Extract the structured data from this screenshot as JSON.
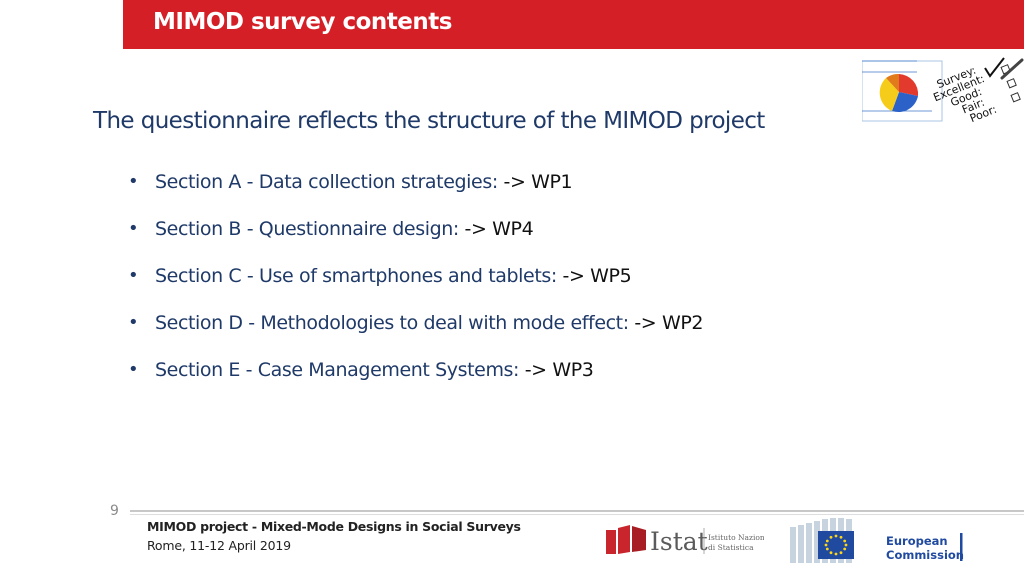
{
  "header": {
    "title": "MIMOD survey contents"
  },
  "survey_image": {
    "icon": "survey-checklist-pie-icon",
    "lines": [
      "Survey:",
      "Excellent:",
      "Good:",
      "Fair:",
      "Poor:"
    ]
  },
  "subtitle": "The questionnaire reflects the structure of the MIMOD project",
  "sections": [
    {
      "label": "Section A - Data collection strategies:",
      "wp": "-> WP1"
    },
    {
      "label": "Section B - Questionnaire design:",
      "wp": "-> WP4"
    },
    {
      "label": "Section C - Use of smartphones and tablets:",
      "wp": "-> WP5"
    },
    {
      "label": "Section D - Methodologies to deal with mode effect:",
      "wp": "-> WP2"
    },
    {
      "label": "Section E - Case Management Systems:",
      "wp": "-> WP3"
    }
  ],
  "footer": {
    "page_number": "9",
    "project": "MIMOD project - Mixed-Mode Designs in Social Surveys",
    "date": "Rome, 11-12 April 2019",
    "istat": {
      "name": "Istat",
      "sub1": "Istituto Nazionale",
      "sub2": "di Statistica"
    },
    "ec": {
      "line1": "European",
      "line2": "Commission"
    }
  },
  "colors": {
    "accent_red": "#d41f26",
    "text_blue": "#1f3a68",
    "eu_blue": "#1f4aa0",
    "eu_yellow": "#ffd617"
  }
}
